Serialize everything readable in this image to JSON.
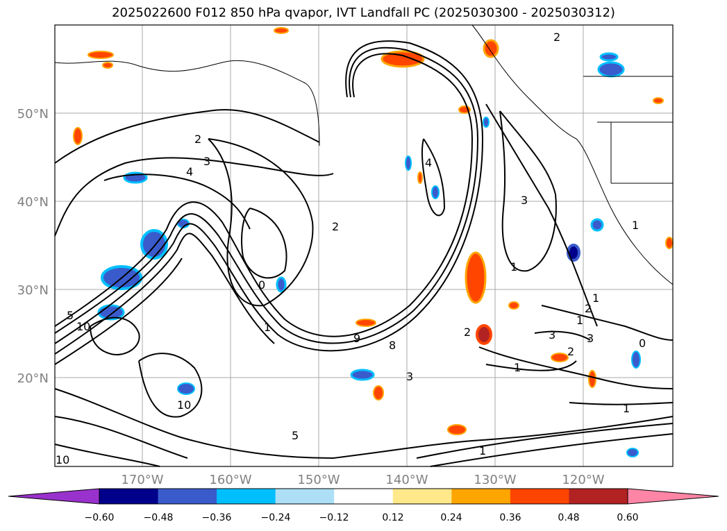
{
  "title": "2025022600 F012 850 hPa qvapor, IVT Landfall PC (2025030300 - 2025030312)",
  "map": {
    "lat_labels": [
      "50°N",
      "40°N",
      "30°N",
      "20°N"
    ],
    "lon_labels": [
      "170°W",
      "160°W",
      "150°W",
      "140°W",
      "130°W",
      "120°W"
    ],
    "contour_labels": [
      "2",
      "3",
      "4",
      "2",
      "0",
      "1",
      "9",
      "8",
      "2",
      "3",
      "1",
      "2",
      "3",
      "1",
      "5",
      "10",
      "10",
      "10",
      "1",
      "3",
      "2",
      "1",
      "5",
      "2",
      "4",
      "1",
      "1",
      "1",
      "0",
      "3"
    ],
    "ocean_color": "#ffffff",
    "land_line_color": "#000000",
    "grid_color": "#a9a9a9"
  },
  "colorbar": {
    "colors": [
      "#9932cc",
      "#00008b",
      "#3a5bcc",
      "#00bfff",
      "#ade0f7",
      "#ffffff",
      "#ffe98a",
      "#ffa500",
      "#ff4500",
      "#b22222",
      "#ff85a6"
    ],
    "ticks": [
      "−0.60",
      "−0.48",
      "−0.36",
      "−0.24",
      "−0.12",
      "0.12",
      "0.24",
      "0.36",
      "0.48",
      "0.60"
    ]
  }
}
